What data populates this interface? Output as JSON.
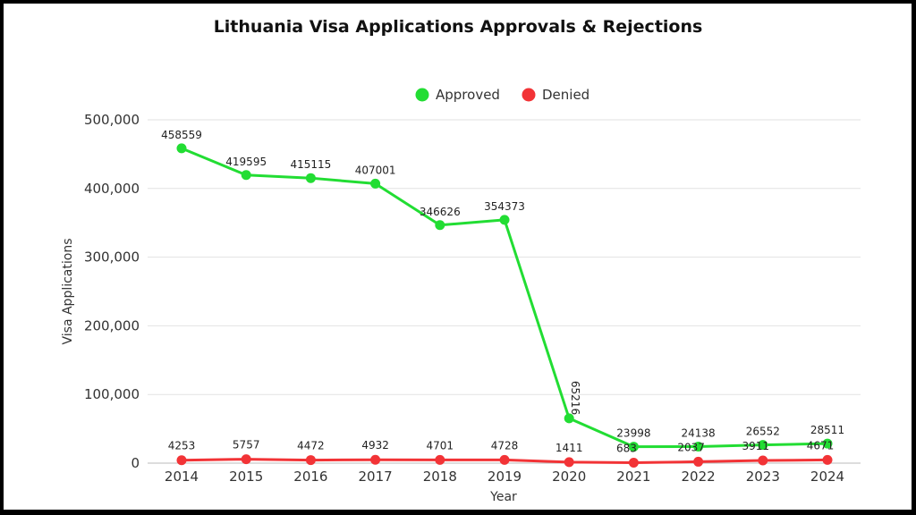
{
  "chart_data": {
    "type": "line",
    "title": "Lithuania Visa Applications Approvals & Rejections",
    "xlabel": "Year",
    "ylabel": "Visa Applications",
    "categories": [
      "2014",
      "2015",
      "2016",
      "2017",
      "2018",
      "2019",
      "2020",
      "2021",
      "2022",
      "2023",
      "2024"
    ],
    "series": [
      {
        "name": "Approved",
        "color": "#22dd33",
        "values": [
          458559,
          419595,
          415115,
          407001,
          346626,
          354373,
          65216,
          23998,
          24138,
          26552,
          28511
        ]
      },
      {
        "name": "Denied",
        "color": "#f23336",
        "values": [
          4253,
          5757,
          4472,
          4932,
          4701,
          4728,
          1411,
          683,
          2037,
          3911,
          4671
        ]
      }
    ],
    "yticks": [
      "0",
      "100,000",
      "200,000",
      "300,000",
      "400,000",
      "500,000"
    ],
    "ylim": [
      0,
      500000
    ],
    "grid": true,
    "legend_position": "top"
  }
}
